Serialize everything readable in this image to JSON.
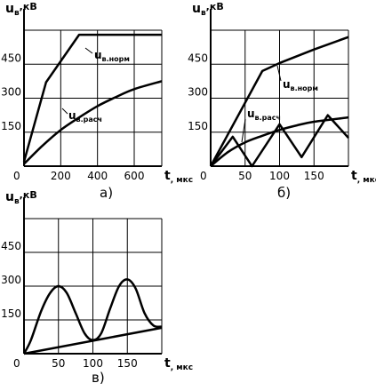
{
  "chart_data": [
    {
      "id": "a",
      "type": "line",
      "caption": "а)",
      "y_label": {
        "main": "u",
        "sub": "в",
        "unit": ",кВ"
      },
      "x_label": {
        "main": "t",
        "unit": ", мкс"
      },
      "xlim": [
        0,
        750
      ],
      "ylim": [
        0,
        600
      ],
      "x_ticks": [
        0,
        200,
        400,
        600
      ],
      "y_ticks": [
        150,
        300,
        450
      ],
      "grid": true,
      "series": [
        {
          "name_main": "u",
          "name_sub": "в.норм",
          "points": [
            [
              0,
              20
            ],
            [
              120,
              370
            ],
            [
              300,
              580
            ],
            [
              750,
              580
            ]
          ]
        },
        {
          "name_main": "u",
          "name_sub": "в.расч",
          "points": [
            [
              0,
              10
            ],
            [
              100,
              90
            ],
            [
              200,
              160
            ],
            [
              300,
              215
            ],
            [
              400,
              265
            ],
            [
              500,
              305
            ],
            [
              600,
              340
            ],
            [
              750,
              375
            ]
          ]
        }
      ]
    },
    {
      "id": "b",
      "type": "line",
      "caption": "б)",
      "y_label": {
        "main": "u",
        "sub": "в",
        "unit": ",кВ"
      },
      "x_label": {
        "main": "t",
        "unit": ", мкс"
      },
      "xlim": [
        0,
        200
      ],
      "ylim": [
        0,
        600
      ],
      "x_ticks": [
        0,
        50,
        100,
        150
      ],
      "y_ticks": [
        150,
        300,
        450
      ],
      "grid": true,
      "series": [
        {
          "name_main": "u",
          "name_sub": "в.норм",
          "points": [
            [
              0,
              0
            ],
            [
              75,
              420
            ],
            [
              100,
              455
            ],
            [
              150,
              515
            ],
            [
              200,
              570
            ]
          ]
        },
        {
          "name_main": "u",
          "name_sub": "в.расч",
          "points": [
            [
              0,
              0
            ],
            [
              25,
              62
            ],
            [
              50,
              105
            ],
            [
              75,
              134
            ],
            [
              100,
              160
            ],
            [
              125,
              180
            ],
            [
              150,
              196
            ],
            [
              200,
              215
            ]
          ]
        },
        {
          "name_main": "",
          "name_sub": "",
          "points": [
            [
              0,
              0
            ],
            [
              32,
              130
            ],
            [
              60,
              0
            ],
            [
              100,
              185
            ],
            [
              132,
              40
            ],
            [
              170,
              225
            ],
            [
              200,
              125
            ]
          ]
        }
      ]
    },
    {
      "id": "c",
      "type": "line",
      "caption": "в)",
      "y_label": {
        "main": "u",
        "sub": "в",
        "unit": ",кВ"
      },
      "x_label": {
        "main": "t",
        "unit": ", мкс"
      },
      "xlim": [
        0,
        200
      ],
      "ylim": [
        0,
        600
      ],
      "x_ticks": [
        0,
        50,
        100,
        150
      ],
      "y_ticks": [
        150,
        300,
        450
      ],
      "grid": true,
      "series": [
        {
          "name_main": "",
          "name_sub": "",
          "kind": "oscillating",
          "points": [
            [
              0,
              0
            ],
            [
              10,
              60
            ],
            [
              25,
              190
            ],
            [
              38,
              270
            ],
            [
              50,
              300
            ],
            [
              62,
              270
            ],
            [
              75,
              180
            ],
            [
              88,
              90
            ],
            [
              100,
              60
            ],
            [
              112,
              90
            ],
            [
              125,
              200
            ],
            [
              138,
              300
            ],
            [
              150,
              330
            ],
            [
              162,
              290
            ],
            [
              175,
              180
            ],
            [
              188,
              125
            ],
            [
              200,
              120
            ]
          ]
        },
        {
          "name_main": "",
          "name_sub": "",
          "points": [
            [
              0,
              0
            ],
            [
              200,
              115
            ]
          ]
        }
      ]
    }
  ]
}
